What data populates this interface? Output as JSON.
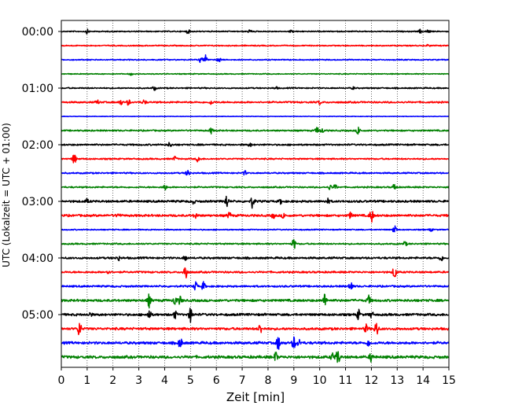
{
  "chart_data": {
    "type": "line",
    "title": "",
    "xlabel": "Zeit  [min]",
    "ylabel": "UTC (Lokalzeit = UTC + 01:00)",
    "xlim": [
      0,
      15
    ],
    "x_ticks": [
      "0",
      "1",
      "2",
      "3",
      "4",
      "5",
      "6",
      "7",
      "8",
      "9",
      "10",
      "11",
      "12",
      "13",
      "14",
      "15"
    ],
    "y_tick_labels": [
      "00:00",
      "01:00",
      "02:00",
      "03:00",
      "04:00",
      "05:00"
    ],
    "grid": "vertical dotted",
    "trace_colors": [
      "#000000",
      "#ff0000",
      "#0000ff",
      "#008000"
    ],
    "traces": [
      {
        "start": "00:00",
        "noise": 0.6,
        "events": [
          [
            1.0,
            2.5
          ],
          [
            4.9,
            2.5
          ],
          [
            7.3,
            2.5
          ],
          [
            8.9,
            1.5
          ],
          [
            13.9,
            2.5
          ],
          [
            14.2,
            2.5
          ]
        ]
      },
      {
        "start": "00:15",
        "noise": 0.6,
        "events": [
          [
            14.2,
            1.5
          ]
        ]
      },
      {
        "start": "00:30",
        "noise": 0.6,
        "events": [
          [
            5.4,
            3.5
          ],
          [
            5.6,
            6.5
          ],
          [
            6.1,
            3.5
          ]
        ]
      },
      {
        "start": "00:45",
        "noise": 0.5,
        "events": [
          [
            2.7,
            1.5
          ]
        ]
      },
      {
        "start": "01:00",
        "noise": 0.7,
        "events": [
          [
            3.6,
            2.5
          ],
          [
            8.3,
            1.5
          ],
          [
            11.3,
            1.5
          ]
        ]
      },
      {
        "start": "01:15",
        "noise": 0.9,
        "events": [
          [
            1.4,
            2.5
          ],
          [
            2.3,
            3.0
          ],
          [
            2.6,
            3.5
          ],
          [
            3.2,
            3.0
          ],
          [
            5.8,
            2.5
          ],
          [
            10.0,
            2.5
          ]
        ]
      },
      {
        "start": "01:30",
        "noise": 0.3,
        "events": []
      },
      {
        "start": "01:45",
        "noise": 0.8,
        "events": [
          [
            5.8,
            3.5
          ],
          [
            9.9,
            4.5
          ],
          [
            10.1,
            3.0
          ],
          [
            11.5,
            5.5
          ]
        ]
      },
      {
        "start": "02:00",
        "noise": 0.9,
        "events": [
          [
            4.2,
            3.0
          ],
          [
            7.3,
            2.0
          ]
        ]
      },
      {
        "start": "02:15",
        "noise": 0.8,
        "events": [
          [
            0.5,
            7.0
          ],
          [
            4.4,
            3.0
          ],
          [
            5.3,
            4.0
          ]
        ]
      },
      {
        "start": "02:30",
        "noise": 0.8,
        "events": [
          [
            4.9,
            5.5
          ],
          [
            7.1,
            2.5
          ]
        ]
      },
      {
        "start": "02:45",
        "noise": 0.8,
        "events": [
          [
            4.0,
            4.0
          ],
          [
            10.4,
            3.0
          ],
          [
            10.6,
            3.0
          ],
          [
            12.9,
            5.0
          ]
        ]
      },
      {
        "start": "03:00",
        "noise": 1.2,
        "events": [
          [
            1.0,
            2.5
          ],
          [
            5.1,
            3.0
          ],
          [
            6.4,
            8.0
          ],
          [
            7.4,
            8.0
          ],
          [
            8.5,
            3.0
          ],
          [
            10.3,
            3.5
          ]
        ]
      },
      {
        "start": "03:15",
        "noise": 1.2,
        "events": [
          [
            2.2,
            3.0
          ],
          [
            5.2,
            3.5
          ],
          [
            6.5,
            4.0
          ],
          [
            8.2,
            3.0
          ],
          [
            8.6,
            3.0
          ],
          [
            11.2,
            4.0
          ],
          [
            12.0,
            9.0
          ]
        ]
      },
      {
        "start": "03:30",
        "noise": 0.6,
        "events": [
          [
            12.9,
            6.0
          ],
          [
            14.3,
            2.0
          ]
        ]
      },
      {
        "start": "03:45",
        "noise": 0.8,
        "events": [
          [
            9.0,
            7.0
          ],
          [
            13.3,
            3.0
          ]
        ]
      },
      {
        "start": "04:00",
        "noise": 1.1,
        "events": [
          [
            2.2,
            3.0
          ],
          [
            4.8,
            3.5
          ],
          [
            14.7,
            3.5
          ]
        ]
      },
      {
        "start": "04:15",
        "noise": 1.0,
        "events": [
          [
            1.8,
            3.0
          ],
          [
            4.8,
            12.0
          ],
          [
            12.9,
            9.0
          ]
        ]
      },
      {
        "start": "04:30",
        "noise": 1.0,
        "events": [
          [
            5.2,
            5.5
          ],
          [
            5.5,
            5.0
          ],
          [
            11.2,
            7.0
          ]
        ]
      },
      {
        "start": "04:45",
        "noise": 1.3,
        "events": [
          [
            3.4,
            8.0
          ],
          [
            4.4,
            6.0
          ],
          [
            4.6,
            5.0
          ],
          [
            10.2,
            8.0
          ],
          [
            11.9,
            6.0
          ]
        ]
      },
      {
        "start": "05:00",
        "noise": 1.3,
        "events": [
          [
            1.1,
            2.5
          ],
          [
            3.4,
            6.0
          ],
          [
            4.4,
            4.5
          ],
          [
            5.0,
            9.0
          ],
          [
            11.5,
            6.0
          ],
          [
            12.0,
            4.0
          ]
        ]
      },
      {
        "start": "05:15",
        "noise": 1.3,
        "events": [
          [
            0.7,
            10.0
          ],
          [
            7.7,
            6.0
          ],
          [
            12.2,
            10.0
          ],
          [
            11.8,
            5.0
          ]
        ]
      },
      {
        "start": "05:30",
        "noise": 1.4,
        "events": [
          [
            4.6,
            7.0
          ],
          [
            8.4,
            9.0
          ],
          [
            9.0,
            8.0
          ],
          [
            9.2,
            4.0
          ],
          [
            11.9,
            4.0
          ]
        ]
      },
      {
        "start": "05:45",
        "noise": 1.5,
        "events": [
          [
            8.3,
            6.0
          ],
          [
            10.5,
            5.0
          ],
          [
            10.7,
            10.0
          ],
          [
            12.0,
            6.0
          ]
        ]
      }
    ]
  }
}
